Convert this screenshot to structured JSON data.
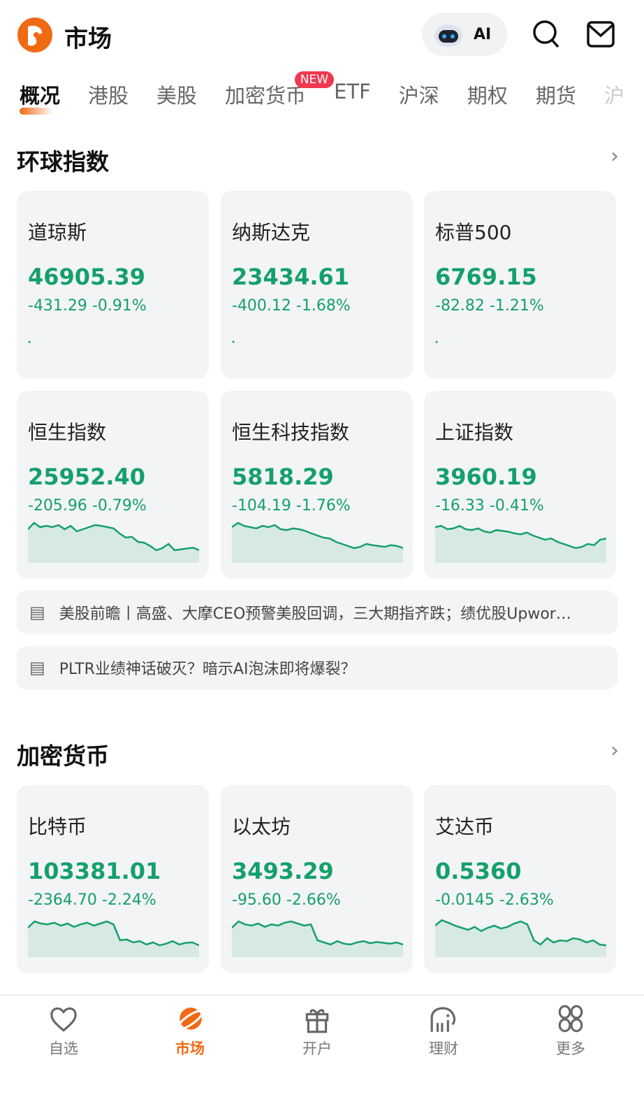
{
  "header": {
    "title": "市场",
    "ai_label": "AI"
  },
  "tabs": [
    {
      "label": "概况",
      "active": true
    },
    {
      "label": "港股"
    },
    {
      "label": "美股"
    },
    {
      "label": "加密货币",
      "badge": "NEW"
    },
    {
      "label": "ETF"
    },
    {
      "label": "沪深"
    },
    {
      "label": "期权"
    },
    {
      "label": "期货"
    },
    {
      "label": "沪"
    }
  ],
  "colors": {
    "accent": "#f06a14",
    "down": "#14a06a",
    "card": "#f3f4f6",
    "badge": "#f0384f"
  },
  "global": {
    "title": "环球指数",
    "cards": [
      {
        "name": "道琼斯",
        "price": "46905.39",
        "change": "-431.29 -0.91%",
        "spark": []
      },
      {
        "name": "纳斯达克",
        "price": "23434.61",
        "change": "-400.12 -1.68%",
        "spark": []
      },
      {
        "name": "标普500",
        "price": "6769.15",
        "change": "-82.82 -1.21%",
        "spark": []
      },
      {
        "name": "恒生指数",
        "price": "25952.40",
        "change": "-205.96 -0.79%",
        "spark": [
          80,
          95,
          85,
          88,
          85,
          90,
          80,
          88,
          75,
          80,
          85,
          90,
          88,
          85,
          82,
          70,
          60,
          62,
          50,
          48,
          40,
          30,
          35,
          45,
          30,
          32,
          34,
          36,
          30
        ]
      },
      {
        "name": "恒生科技指数",
        "price": "5818.29",
        "change": "-104.19 -1.76%",
        "spark": [
          85,
          95,
          88,
          85,
          82,
          88,
          85,
          90,
          80,
          78,
          82,
          80,
          76,
          70,
          65,
          60,
          58,
          50,
          45,
          40,
          35,
          38,
          45,
          42,
          40,
          38,
          42,
          40,
          35
        ]
      },
      {
        "name": "上证指数",
        "price": "3960.19",
        "change": "-16.33 -0.41%",
        "spark": [
          85,
          88,
          80,
          82,
          88,
          80,
          78,
          82,
          75,
          72,
          78,
          76,
          74,
          70,
          68,
          72,
          65,
          60,
          55,
          58,
          50,
          45,
          40,
          35,
          38,
          45,
          42,
          55,
          58
        ]
      }
    ]
  },
  "news": [
    "美股前瞻丨高盛、大摩CEO预警美股回调，三大期指齐跌；绩优股Upwor…",
    "PLTR业绩神话破灭？暗示AI泡沫即将爆裂？"
  ],
  "crypto": {
    "title": "加密货币",
    "cards": [
      {
        "name": "比特币",
        "price": "103381.01",
        "change": "-2364.70 -2.24%",
        "spark": [
          70,
          85,
          80,
          78,
          82,
          75,
          80,
          72,
          78,
          82,
          75,
          80,
          85,
          78,
          40,
          42,
          35,
          38,
          30,
          35,
          28,
          32,
          38,
          30,
          34,
          35,
          28
        ]
      },
      {
        "name": "以太坊",
        "price": "3493.29",
        "change": "-95.60 -2.66%",
        "spark": [
          70,
          85,
          78,
          75,
          80,
          72,
          78,
          75,
          82,
          85,
          80,
          75,
          78,
          40,
          35,
          30,
          38,
          32,
          30,
          35,
          38,
          33,
          36,
          34,
          32,
          35,
          30
        ]
      },
      {
        "name": "艾达币",
        "price": "0.5360",
        "change": "-0.0145 -2.63%",
        "spark": [
          75,
          88,
          82,
          75,
          70,
          65,
          72,
          62,
          70,
          75,
          68,
          72,
          80,
          85,
          78,
          40,
          30,
          45,
          35,
          40,
          38,
          45,
          42,
          35,
          40,
          30,
          28
        ]
      }
    ]
  },
  "nav": [
    {
      "label": "自选",
      "icon": "heart-icon"
    },
    {
      "label": "市场",
      "icon": "planet-icon",
      "active": true
    },
    {
      "label": "开户",
      "icon": "gift-icon"
    },
    {
      "label": "理财",
      "icon": "elephant-icon"
    },
    {
      "label": "更多",
      "icon": "grid-icon"
    }
  ]
}
